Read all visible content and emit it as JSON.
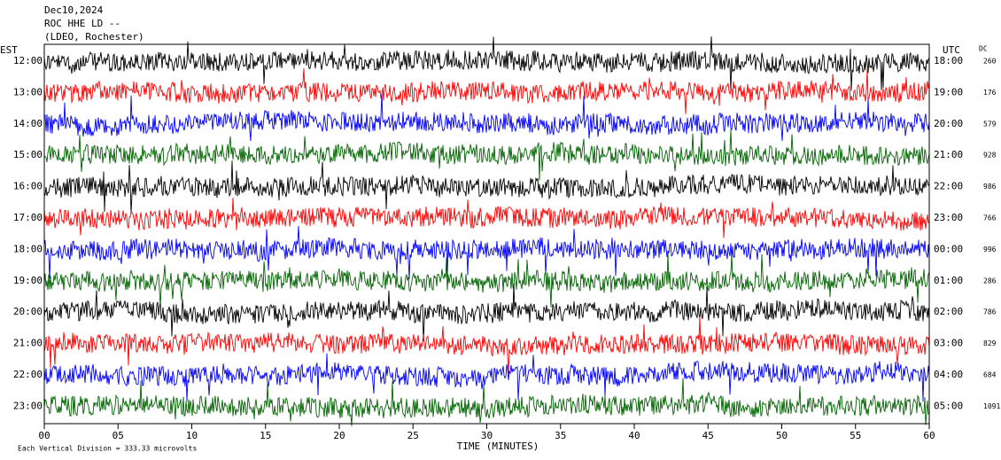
{
  "header": {
    "date": "Dec10,2024",
    "station": "ROC HHE LD --",
    "network": "(LDEO, Rochester)"
  },
  "left_axis": {
    "title": "EST",
    "labels": [
      "12:00",
      "13:00",
      "14:00",
      "15:00",
      "16:00",
      "17:00",
      "18:00",
      "19:00",
      "20:00",
      "21:00",
      "22:00",
      "23:00"
    ]
  },
  "right_axis": {
    "title": "UTC",
    "labels": [
      "18:00",
      "19:00",
      "20:00",
      "21:00",
      "22:00",
      "23:00",
      "00:00",
      "01:00",
      "02:00",
      "03:00",
      "04:00",
      "05:00"
    ]
  },
  "dc": {
    "title": "DC",
    "values": [
      260,
      176,
      579,
      928,
      986,
      766,
      996,
      286,
      786,
      829,
      684,
      1091
    ]
  },
  "x_axis": {
    "title": "TIME (MINUTES)",
    "ticks": [
      "00",
      "05",
      "10",
      "15",
      "20",
      "25",
      "30",
      "35",
      "40",
      "45",
      "50",
      "55",
      "60"
    ]
  },
  "footer": "Each Vertical Division =  333.33 microvolts",
  "trace_colors": [
    "#000000",
    "#ff0000",
    "#0000ff",
    "#006400"
  ]
}
